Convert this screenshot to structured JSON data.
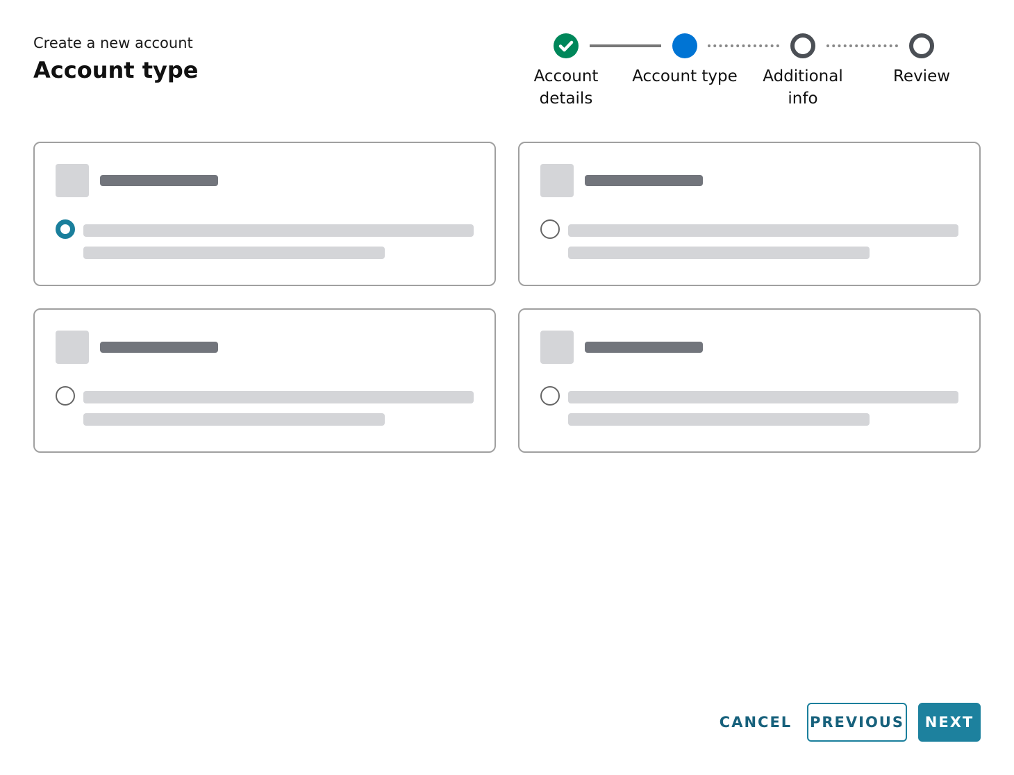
{
  "header": {
    "subtitle": "Create a new account",
    "title": "Account type"
  },
  "stepper": {
    "steps": [
      {
        "label": "Account details",
        "state": "complete",
        "icon": "check-icon"
      },
      {
        "label": "Account type",
        "state": "current"
      },
      {
        "label": "Additional info",
        "state": "upcoming"
      },
      {
        "label": "Review",
        "state": "upcoming"
      }
    ]
  },
  "options": {
    "selected_index": 0,
    "count": 4
  },
  "footer": {
    "cancel": "CANCEL",
    "previous": "PREVIOUS",
    "next": "NEXT"
  },
  "colors": {
    "primary": "#1a7f9c",
    "complete": "#00875a",
    "current": "#0074d4",
    "upcoming": "#4b4f55"
  }
}
